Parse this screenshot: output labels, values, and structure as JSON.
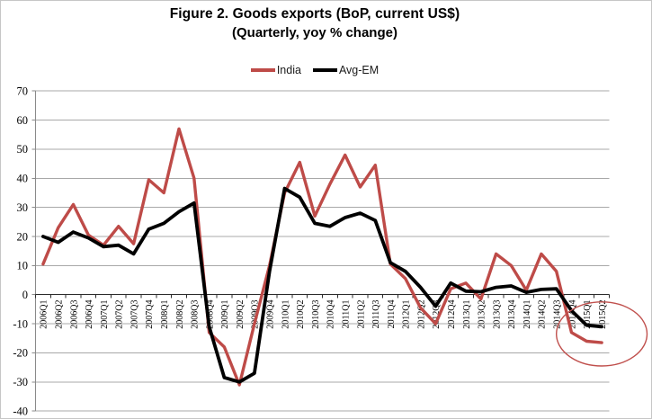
{
  "title": {
    "line1": "Figure 2. Goods exports (BoP, current US$)",
    "line2": "(Quarterly, yoy % change)"
  },
  "legend": {
    "items": [
      {
        "label": "India",
        "color": "#BE4B48"
      },
      {
        "label": "Avg-EM",
        "color": "#000000"
      }
    ]
  },
  "y_axis": {
    "ticks": [
      "70",
      "60",
      "50",
      "40",
      "30",
      "20",
      "10",
      "0",
      "-10",
      "-20",
      "-30",
      "-40"
    ]
  },
  "chart_data": {
    "type": "line",
    "title": "Figure 2. Goods exports (BoP, current US$)",
    "subtitle": "(Quarterly, yoy % change)",
    "ylabel": "yoy % change",
    "ylim": [
      -40,
      70
    ],
    "ytick_step": 10,
    "grid": true,
    "legend_position": "top-center",
    "categories": [
      "2006Q1",
      "2006Q2",
      "2006Q3",
      "2006Q4",
      "2007Q1",
      "2007Q2",
      "2007Q3",
      "2007Q4",
      "2008Q1",
      "2008Q2",
      "2008Q3",
      "2008Q4",
      "2009Q1",
      "2009Q2",
      "2009Q3",
      "2009Q4",
      "2010Q1",
      "2010Q2",
      "2010Q3",
      "2010Q4",
      "2011Q1",
      "2011Q2",
      "2011Q3",
      "2011Q4",
      "2012Q1",
      "2012Q2",
      "2012Q3",
      "2012Q4",
      "2013Q1",
      "2013Q2",
      "2013Q3",
      "2013Q4",
      "2014Q1",
      "2014Q2",
      "2014Q3",
      "2014Q4",
      "2015Q1",
      "2015Q2"
    ],
    "series": [
      {
        "name": "India",
        "color": "#BE4B48",
        "stroke_width": 3.4,
        "values": [
          10.5,
          23,
          31,
          20.5,
          17,
          23.5,
          17.5,
          39.5,
          35,
          57,
          40,
          -13,
          -18,
          -31,
          -10,
          10,
          35,
          45.5,
          27,
          38,
          48,
          37,
          44.5,
          10.5,
          5.5,
          -4.5,
          -10,
          2,
          4,
          -1.5,
          14,
          10,
          1.5,
          14,
          8,
          -13,
          -16,
          -16.5
        ]
      },
      {
        "name": "Avg-EM",
        "color": "#000000",
        "stroke_width": 3.8,
        "values": [
          20,
          18,
          21.5,
          19.5,
          16.5,
          17,
          14,
          22.5,
          24.5,
          28.5,
          31.5,
          -11,
          -28.5,
          -30,
          -27,
          8,
          36.5,
          33.5,
          24.5,
          23.5,
          26.5,
          28,
          25.5,
          11,
          8,
          2.5,
          -4,
          4,
          1.2,
          1,
          2.5,
          3,
          0.8,
          1.8,
          2,
          -5.5,
          -10.5,
          -11
        ]
      }
    ],
    "annotation": {
      "shape": "ellipse",
      "purpose": "hand-drawn style oval highlighting 2014Q4-2015Q2 where India's export growth falls below the EM average",
      "color": "#C0504D",
      "center_category_index": 37,
      "center_value": -13.5,
      "radius_quarters": 3,
      "radius_values": 11
    }
  }
}
